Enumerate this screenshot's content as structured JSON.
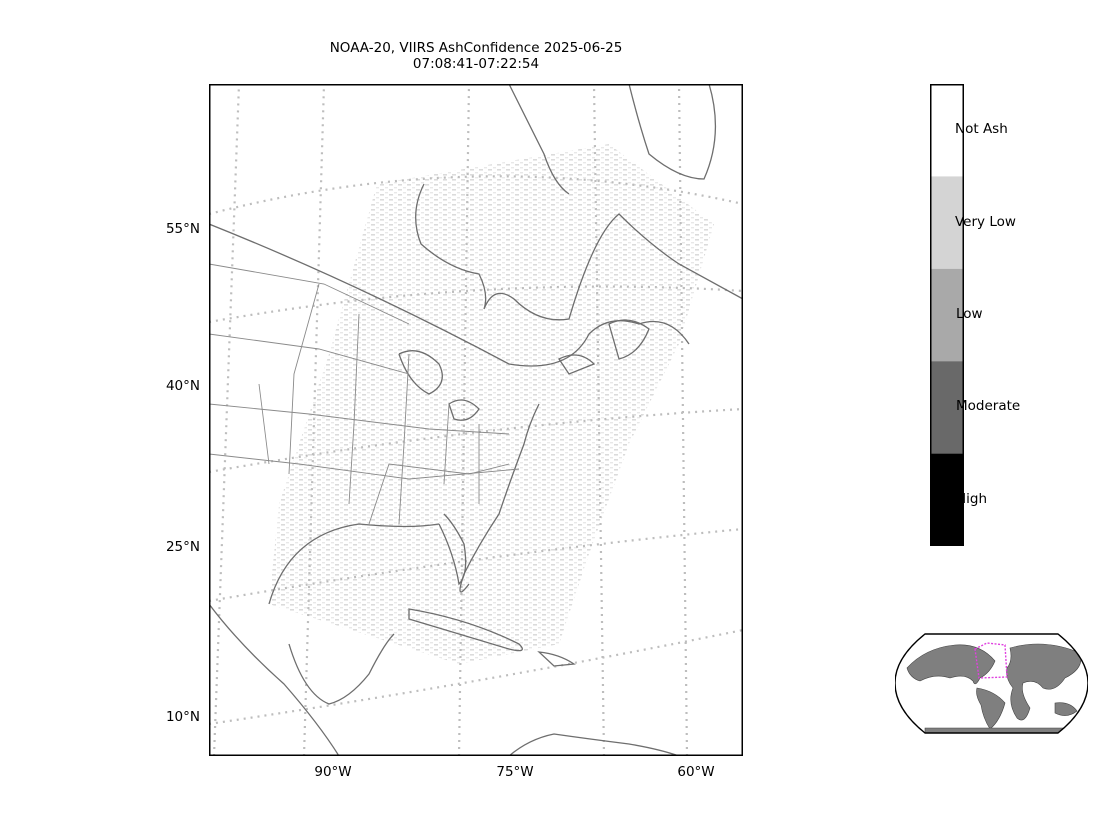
{
  "title": {
    "line1": "NOAA-20, VIIRS AshConfidence 2025-06-25",
    "line2": "07:08:41-07:22:54"
  },
  "map": {
    "lat_labels": [
      "55°N",
      "40°N",
      "25°N",
      "10°N"
    ],
    "lon_labels": [
      "90°W",
      "75°W",
      "60°W"
    ],
    "gridline_color": "#bdbdbd",
    "coastline_color": "#6e6e6e"
  },
  "colorbar": {
    "categories": [
      {
        "label": "Not Ash",
        "color": "#ffffff"
      },
      {
        "label": "Very Low",
        "color": "#d4d4d4"
      },
      {
        "label": "Low",
        "color": "#a9a9a9"
      },
      {
        "label": "Moderate",
        "color": "#696969"
      },
      {
        "label": "High",
        "color": "#000000"
      }
    ]
  },
  "inset": {
    "land_color": "#7f7f7f",
    "domain_box_color": "#e040e0"
  }
}
